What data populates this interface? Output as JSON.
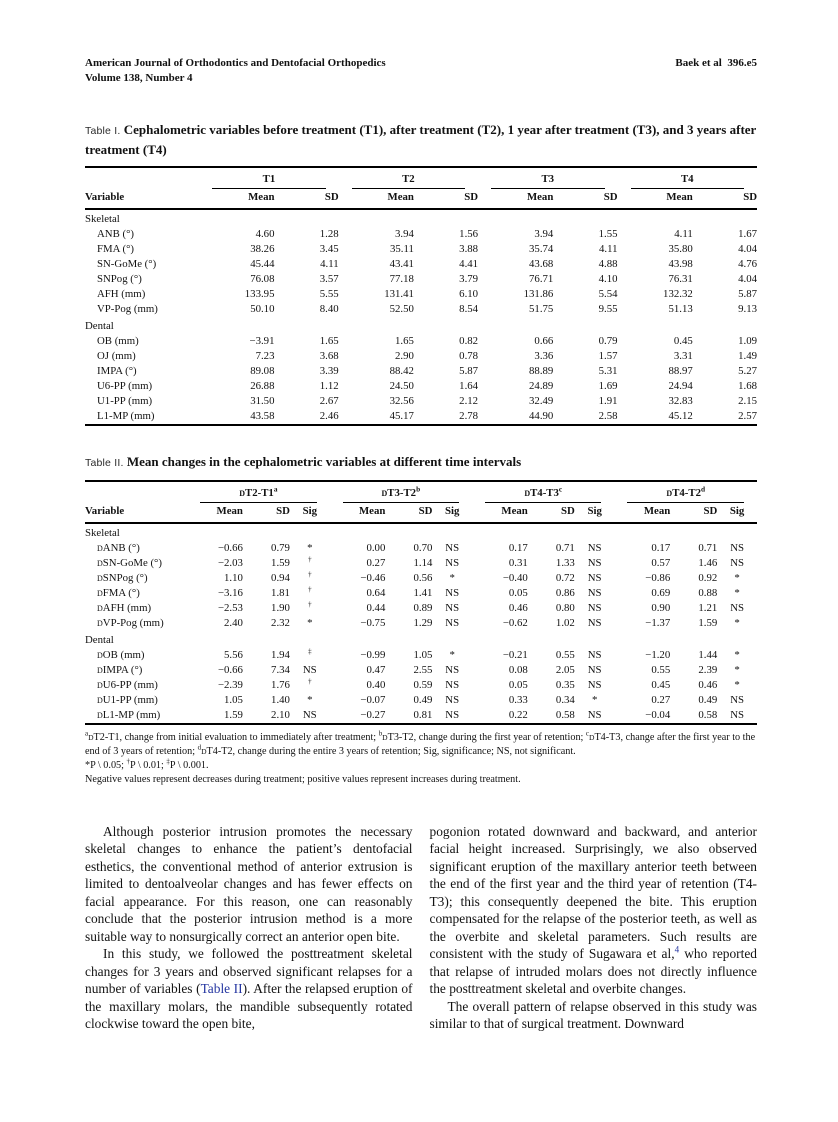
{
  "page": {
    "header_left_line1": "American Journal of Orthodontics and Dentofacial Orthopedics",
    "header_left_line2": "Volume 138, Number 4",
    "header_right": "Baek et al 396.e5"
  },
  "colors": {
    "link": "#2334a0",
    "text": "#121212",
    "rule": "#000000"
  },
  "table1": {
    "label": "Table I.",
    "caption": "Cephalometric variables before treatment (T1), after treatment (T2), 1 year after treatment (T3), and 3 years after treatment (T4)",
    "variable_header": "Variable",
    "groups": [
      "T1",
      "T2",
      "T3",
      "T4"
    ],
    "sub_headers": [
      "Mean",
      "SD"
    ],
    "sections": [
      {
        "name": "Skeletal",
        "rows": [
          {
            "label": "ANB (°)",
            "values": [
              "4.60",
              "1.28",
              "3.94",
              "1.56",
              "3.94",
              "1.55",
              "4.11",
              "1.67"
            ]
          },
          {
            "label": "FMA (°)",
            "values": [
              "38.26",
              "3.45",
              "35.11",
              "3.88",
              "35.74",
              "4.11",
              "35.80",
              "4.04"
            ]
          },
          {
            "label": "SN-GoMe (°)",
            "values": [
              "45.44",
              "4.11",
              "43.41",
              "4.41",
              "43.68",
              "4.88",
              "43.98",
              "4.76"
            ]
          },
          {
            "label": "SNPog (°)",
            "values": [
              "76.08",
              "3.57",
              "77.18",
              "3.79",
              "76.71",
              "4.10",
              "76.31",
              "4.04"
            ]
          },
          {
            "label": "AFH (mm)",
            "values": [
              "133.95",
              "5.55",
              "131.41",
              "6.10",
              "131.86",
              "5.54",
              "132.32",
              "5.87"
            ]
          },
          {
            "label": "VP-Pog (mm)",
            "values": [
              "50.10",
              "8.40",
              "52.50",
              "8.54",
              "51.75",
              "9.55",
              "51.13",
              "9.13"
            ]
          }
        ]
      },
      {
        "name": "Dental",
        "rows": [
          {
            "label": "OB (mm)",
            "values": [
              "−3.91",
              "1.65",
              "1.65",
              "0.82",
              "0.66",
              "0.79",
              "0.45",
              "1.09"
            ]
          },
          {
            "label": "OJ (mm)",
            "values": [
              "7.23",
              "3.68",
              "2.90",
              "0.78",
              "3.36",
              "1.57",
              "3.31",
              "1.49"
            ]
          },
          {
            "label": "IMPA (°)",
            "values": [
              "89.08",
              "3.39",
              "88.42",
              "5.87",
              "88.89",
              "5.31",
              "88.97",
              "5.27"
            ]
          },
          {
            "label": "U6-PP (mm)",
            "values": [
              "26.88",
              "1.12",
              "24.50",
              "1.64",
              "24.89",
              "1.69",
              "24.94",
              "1.68"
            ]
          },
          {
            "label": "U1-PP (mm)",
            "values": [
              "31.50",
              "2.67",
              "32.56",
              "2.12",
              "32.49",
              "1.91",
              "32.83",
              "2.15"
            ]
          },
          {
            "label": "L1-MP (mm)",
            "values": [
              "43.58",
              "2.46",
              "45.17",
              "2.78",
              "44.90",
              "2.58",
              "45.12",
              "2.57"
            ]
          }
        ]
      }
    ]
  },
  "table2": {
    "label": "Table II.",
    "caption": "Mean changes in the cephalometric variables at different time intervals",
    "variable_header": "Variable",
    "groups": [
      {
        "delta": "D",
        "name": "T2-T1",
        "sup": "a"
      },
      {
        "delta": "D",
        "name": "T3-T2",
        "sup": "b"
      },
      {
        "delta": "D",
        "name": "T4-T3",
        "sup": "c"
      },
      {
        "delta": "D",
        "name": "T4-T2",
        "sup": "d"
      }
    ],
    "sub_headers": [
      "Mean",
      "SD",
      "Sig"
    ],
    "sections": [
      {
        "name": "Skeletal",
        "rows": [
          {
            "delta": "D",
            "label": "ANB (°)",
            "values": [
              "−0.66",
              "0.79",
              "*",
              "0.00",
              "0.70",
              "NS",
              "0.17",
              "0.71",
              "NS",
              "0.17",
              "0.71",
              "NS"
            ]
          },
          {
            "delta": "D",
            "label": "SN-GoMe (°)",
            "values": [
              "−2.03",
              "1.59",
              "†",
              "0.27",
              "1.14",
              "NS",
              "0.31",
              "1.33",
              "NS",
              "0.57",
              "1.46",
              "NS"
            ]
          },
          {
            "delta": "D",
            "label": "SNPog (°)",
            "values": [
              "1.10",
              "0.94",
              "†",
              "−0.46",
              "0.56",
              "*",
              "−0.40",
              "0.72",
              "NS",
              "−0.86",
              "0.92",
              "*"
            ]
          },
          {
            "delta": "D",
            "label": "FMA (°)",
            "values": [
              "−3.16",
              "1.81",
              "†",
              "0.64",
              "1.41",
              "NS",
              "0.05",
              "0.86",
              "NS",
              "0.69",
              "0.88",
              "*"
            ]
          },
          {
            "delta": "D",
            "label": "AFH (mm)",
            "values": [
              "−2.53",
              "1.90",
              "†",
              "0.44",
              "0.89",
              "NS",
              "0.46",
              "0.80",
              "NS",
              "0.90",
              "1.21",
              "NS"
            ]
          },
          {
            "delta": "D",
            "label": "VP-Pog (mm)",
            "values": [
              "2.40",
              "2.32",
              "*",
              "−0.75",
              "1.29",
              "NS",
              "−0.62",
              "1.02",
              "NS",
              "−1.37",
              "1.59",
              "*"
            ]
          }
        ]
      },
      {
        "name": "Dental",
        "rows": [
          {
            "delta": "D",
            "label": "OB (mm)",
            "values": [
              "5.56",
              "1.94",
              "‡",
              "−0.99",
              "1.05",
              "*",
              "−0.21",
              "0.55",
              "NS",
              "−1.20",
              "1.44",
              "*"
            ]
          },
          {
            "delta": "D",
            "label": "IMPA (°)",
            "values": [
              "−0.66",
              "7.34",
              "NS",
              "0.47",
              "2.55",
              "NS",
              "0.08",
              "2.05",
              "NS",
              "0.55",
              "2.39",
              "*"
            ]
          },
          {
            "delta": "D",
            "label": "U6-PP (mm)",
            "values": [
              "−2.39",
              "1.76",
              "†",
              "0.40",
              "0.59",
              "NS",
              "0.05",
              "0.35",
              "NS",
              "0.45",
              "0.46",
              "*"
            ]
          },
          {
            "delta": "D",
            "label": "U1-PP (mm)",
            "values": [
              "1.05",
              "1.40",
              "*",
              "−0.07",
              "0.49",
              "NS",
              "0.33",
              "0.34",
              "*",
              "0.27",
              "0.49",
              "NS"
            ]
          },
          {
            "delta": "D",
            "label": "L1-MP (mm)",
            "values": [
              "1.59",
              "2.10",
              "NS",
              "−0.27",
              "0.81",
              "NS",
              "0.22",
              "0.58",
              "NS",
              "−0.04",
              "0.58",
              "NS"
            ]
          }
        ]
      }
    ],
    "footnotes": [
      [
        {
          "sup": "a"
        },
        {
          "d": "D"
        },
        {
          "t": "T2-T1, change from initial evaluation to immediately after treatment; "
        },
        {
          "sup": "b"
        },
        {
          "d": "D"
        },
        {
          "t": "T3-T2, change during the first year of retention; "
        },
        {
          "sup": "c"
        },
        {
          "d": "D"
        },
        {
          "t": "T4-T3, change after the first year to the end of 3 years of retention; "
        },
        {
          "sup": "d"
        },
        {
          "d": "D"
        },
        {
          "t": "T4-T2, change during the entire 3 years of retention; Sig, significance; NS, not significant."
        }
      ],
      [
        {
          "t": "*P \\ 0.05; "
        },
        {
          "sup": "†"
        },
        {
          "t": "P \\ 0.01; "
        },
        {
          "sup": "‡"
        },
        {
          "t": "P \\ 0.001."
        }
      ],
      [
        {
          "t": "Negative values represent decreases during treatment; positive values represent increases during treatment."
        }
      ]
    ]
  },
  "body": {
    "left": [
      {
        "indent": true,
        "segments": [
          {
            "t": "Although posterior intrusion promotes the necessary skeletal changes to enhance the patient’s dentofacial esthetics, the conventional method of anterior extrusion is limited to dentoalveolar changes and has fewer effects on facial appearance. For this reason, one can reasonably conclude that the posterior intrusion method is a more suitable way to nonsurgically correct an anterior open bite."
          }
        ]
      },
      {
        "indent": true,
        "segments": [
          {
            "t": "In this study, we followed the posttreatment skeletal changes for 3 years and observed significant relapses for a number of variables ("
          },
          {
            "link": "Table II"
          },
          {
            "t": "). After the relapsed eruption of the maxillary molars, the mandible subsequently rotated clockwise toward the open bite,"
          }
        ]
      }
    ],
    "right": [
      {
        "indent": false,
        "segments": [
          {
            "t": "pogonion rotated downward and backward, and anterior facial height increased. Surprisingly, we also observed significant eruption of the maxillary anterior teeth between the end of the first year and the third year of retention (T4-T3); this consequently deepened the bite. This eruption compensated for the relapse of the posterior teeth, as well as the overbite and skeletal parameters. Such results are consistent with the study of Sugawara et al,"
          },
          {
            "suplink": "4"
          },
          {
            "t": " who reported that relapse of intruded molars does not directly influence the posttreatment skeletal and overbite changes."
          }
        ]
      },
      {
        "indent": true,
        "segments": [
          {
            "t": "The overall pattern of relapse observed in this study was similar to that of surgical treatment. Downward"
          }
        ]
      }
    ]
  }
}
